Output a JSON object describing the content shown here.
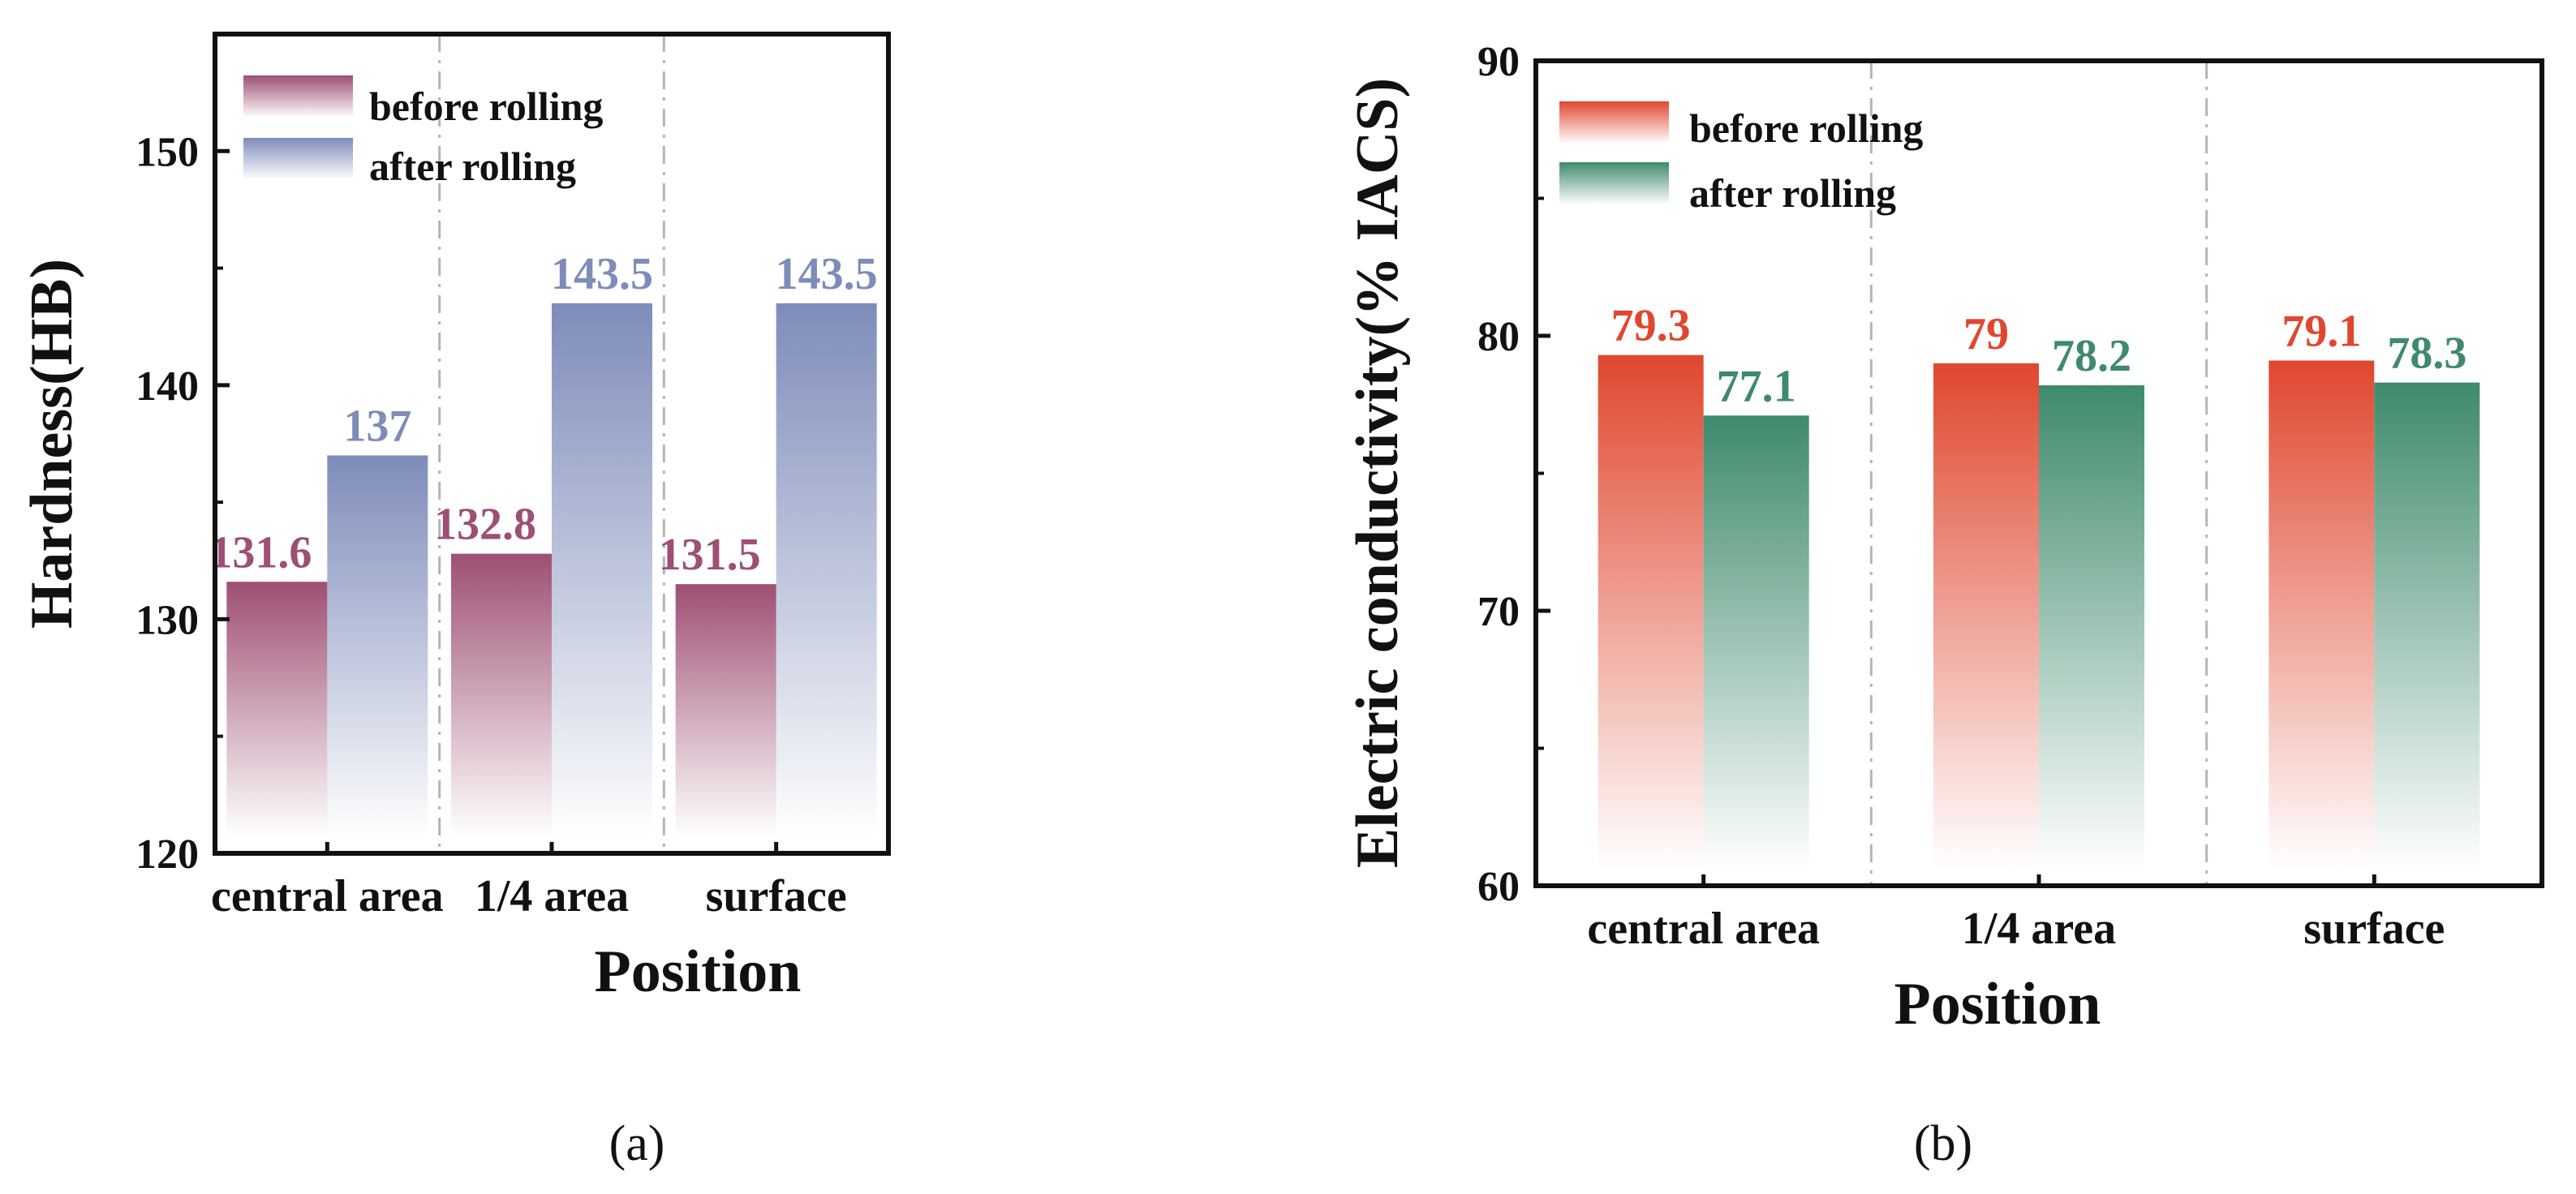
{
  "chart_data": [
    {
      "type": "bar",
      "panel_label": "(a)",
      "categories": [
        "central area",
        "1/4 area",
        "surface"
      ],
      "series": [
        {
          "name": "before rolling",
          "values": [
            131.6,
            132.8,
            131.5
          ],
          "labels": [
            "131.6",
            "132.8",
            "131.5"
          ],
          "color": "#9e4f74"
        },
        {
          "name": "after rolling",
          "values": [
            137,
            143.5,
            143.5
          ],
          "labels": [
            "137",
            "143.5",
            "143.5"
          ],
          "color": "#7e8cba"
        }
      ],
      "xlabel": "Position",
      "ylabel": "Hardness(HB)",
      "ylim": [
        120,
        155
      ],
      "yticks": [
        120,
        130,
        140,
        150
      ],
      "grid": false,
      "legend_position": "top-left",
      "bar_style": "vertical gradient fading to white"
    },
    {
      "type": "bar",
      "panel_label": "(b)",
      "categories": [
        "central area",
        "1/4 area",
        "surface"
      ],
      "series": [
        {
          "name": "before rolling",
          "values": [
            79.3,
            79,
            79.1
          ],
          "labels": [
            "79.3",
            "79",
            "79.1"
          ],
          "color": "#e0472f"
        },
        {
          "name": "after rolling",
          "values": [
            77.1,
            78.2,
            78.3
          ],
          "labels": [
            "77.1",
            "78.2",
            "78.3"
          ],
          "color": "#3f8a6c"
        }
      ],
      "xlabel": "Position",
      "ylabel": "Electric conductivity(% IACS)",
      "ylim": [
        60,
        90
      ],
      "yticks": [
        60,
        70,
        80,
        90
      ],
      "grid": false,
      "legend_position": "top-left",
      "bar_style": "vertical gradient fading to white"
    }
  ]
}
